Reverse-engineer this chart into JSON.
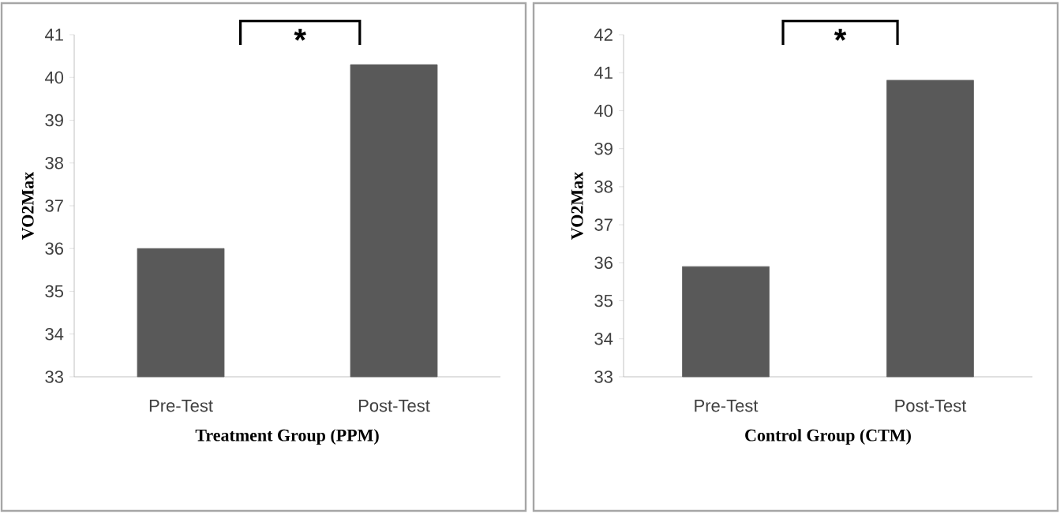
{
  "chart_data": [
    {
      "type": "bar",
      "xlabel": "Treatment Group (PPM)",
      "ylabel": "VO2Max",
      "categories": [
        "Pre-Test",
        "Post-Test"
      ],
      "values": [
        36.0,
        40.3
      ],
      "color": "#595959",
      "ylim": [
        33,
        41
      ],
      "yticks": [
        33,
        34,
        35,
        36,
        37,
        38,
        39,
        40,
        41
      ],
      "annotations": [
        "*"
      ]
    },
    {
      "type": "bar",
      "xlabel": "Control Group (CTM)",
      "ylabel": "VO2Max",
      "categories": [
        "Pre-Test",
        "Post-Test"
      ],
      "values": [
        35.9,
        40.8
      ],
      "color": "#595959",
      "ylim": [
        33,
        42
      ],
      "yticks": [
        33,
        34,
        35,
        36,
        37,
        38,
        39,
        40,
        41,
        42
      ],
      "annotations": [
        "*"
      ]
    }
  ]
}
